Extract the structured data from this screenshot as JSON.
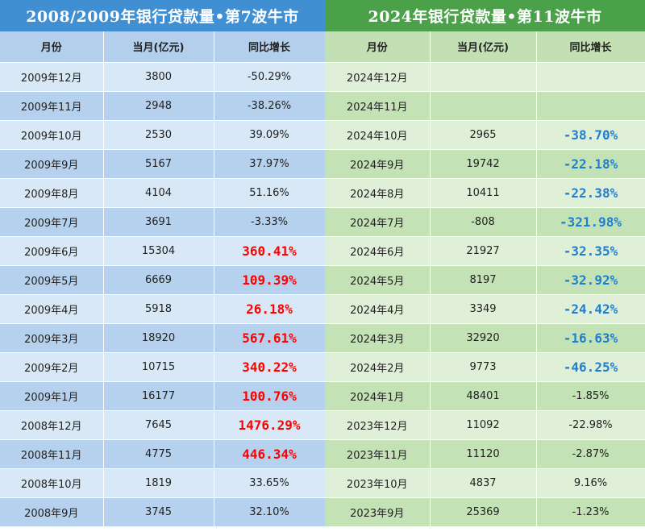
{
  "colors": {
    "left_title_bg": "#3f8fd2",
    "right_title_bg": "#4aa14a",
    "highlight_red": "#ff0000",
    "highlight_blue": "#1e7fd0"
  },
  "left": {
    "title": "2008/2009年银行贷款量•第7波牛市",
    "headers": [
      "月份",
      "当月(亿元)",
      "同比增长"
    ],
    "rows": [
      {
        "month": "2009年12月",
        "amount": "3800",
        "growth": "-50.29%",
        "highlight": ""
      },
      {
        "month": "2009年11月",
        "amount": "2948",
        "growth": "-38.26%",
        "highlight": ""
      },
      {
        "month": "2009年10月",
        "amount": "2530",
        "growth": "39.09%",
        "highlight": ""
      },
      {
        "month": "2009年9月",
        "amount": "5167",
        "growth": "37.97%",
        "highlight": ""
      },
      {
        "month": "2009年8月",
        "amount": "4104",
        "growth": "51.16%",
        "highlight": ""
      },
      {
        "month": "2009年7月",
        "amount": "3691",
        "growth": "-3.33%",
        "highlight": ""
      },
      {
        "month": "2009年6月",
        "amount": "15304",
        "growth": "360.41%",
        "highlight": "red"
      },
      {
        "month": "2009年5月",
        "amount": "6669",
        "growth": "109.39%",
        "highlight": "red"
      },
      {
        "month": "2009年4月",
        "amount": "5918",
        "growth": "26.18%",
        "highlight": "red"
      },
      {
        "month": "2009年3月",
        "amount": "18920",
        "growth": "567.61%",
        "highlight": "red"
      },
      {
        "month": "2009年2月",
        "amount": "10715",
        "growth": "340.22%",
        "highlight": "red"
      },
      {
        "month": "2009年1月",
        "amount": "16177",
        "growth": "100.76%",
        "highlight": "red"
      },
      {
        "month": "2008年12月",
        "amount": "7645",
        "growth": "1476.29%",
        "highlight": "red"
      },
      {
        "month": "2008年11月",
        "amount": "4775",
        "growth": "446.34%",
        "highlight": "red"
      },
      {
        "month": "2008年10月",
        "amount": "1819",
        "growth": "33.65%",
        "highlight": ""
      },
      {
        "month": "2008年9月",
        "amount": "3745",
        "growth": "32.10%",
        "highlight": ""
      }
    ]
  },
  "right": {
    "title": "2024年银行贷款量•第11波牛市",
    "headers": [
      "月份",
      "当月(亿元)",
      "同比增长"
    ],
    "rows": [
      {
        "month": "2024年12月",
        "amount": "",
        "growth": "",
        "highlight": ""
      },
      {
        "month": "2024年11月",
        "amount": "",
        "growth": "",
        "highlight": ""
      },
      {
        "month": "2024年10月",
        "amount": "2965",
        "growth": "-38.70%",
        "highlight": "blue"
      },
      {
        "month": "2024年9月",
        "amount": "19742",
        "growth": "-22.18%",
        "highlight": "blue"
      },
      {
        "month": "2024年8月",
        "amount": "10411",
        "growth": "-22.38%",
        "highlight": "blue"
      },
      {
        "month": "2024年7月",
        "amount": "-808",
        "growth": "-321.98%",
        "highlight": "blue"
      },
      {
        "month": "2024年6月",
        "amount": "21927",
        "growth": "-32.35%",
        "highlight": "blue"
      },
      {
        "month": "2024年5月",
        "amount": "8197",
        "growth": "-32.92%",
        "highlight": "blue"
      },
      {
        "month": "2024年4月",
        "amount": "3349",
        "growth": "-24.42%",
        "highlight": "blue"
      },
      {
        "month": "2024年3月",
        "amount": "32920",
        "growth": "-16.63%",
        "highlight": "blue"
      },
      {
        "month": "2024年2月",
        "amount": "9773",
        "growth": "-46.25%",
        "highlight": "blue"
      },
      {
        "month": "2024年1月",
        "amount": "48401",
        "growth": "-1.85%",
        "highlight": ""
      },
      {
        "month": "2023年12月",
        "amount": "11092",
        "growth": "-22.98%",
        "highlight": ""
      },
      {
        "month": "2023年11月",
        "amount": "11120",
        "growth": "-2.87%",
        "highlight": ""
      },
      {
        "month": "2023年10月",
        "amount": "4837",
        "growth": "9.16%",
        "highlight": ""
      },
      {
        "month": "2023年9月",
        "amount": "25369",
        "growth": "-1.23%",
        "highlight": ""
      }
    ]
  }
}
